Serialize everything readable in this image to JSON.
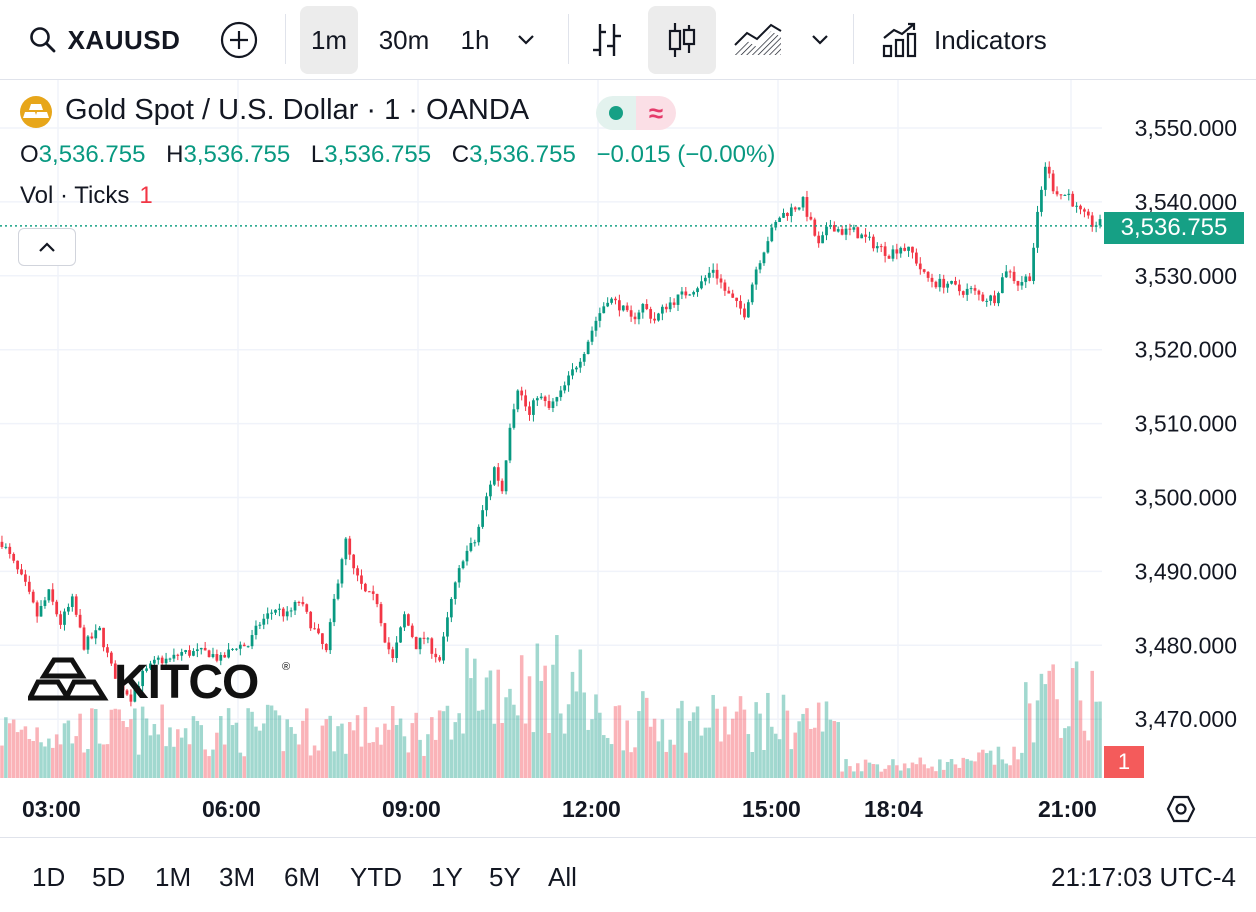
{
  "toolbar": {
    "symbol": "XAUUSD",
    "intervals": [
      "1m",
      "30m",
      "1h"
    ],
    "active_interval": "1m",
    "indicators_label": "Indicators"
  },
  "legend": {
    "title": "Gold Spot / U.S. Dollar · 1 · OANDA",
    "ohlc": {
      "o_label": "O",
      "o": "3,536.755",
      "h_label": "H",
      "h": "3,536.755",
      "l_label": "L",
      "l": "3,536.755",
      "c_label": "C",
      "c": "3,536.755",
      "change": "−0.015 (−0.00%)"
    },
    "volume_label": "Vol · Ticks",
    "volume_value": "1",
    "wave_glyph": "≈"
  },
  "price_scale": {
    "current_price": "3,536.755",
    "current_volume": "1"
  },
  "watermark": {
    "text": "KITCO",
    "mark": "®"
  },
  "colors": {
    "up": "#089981",
    "down": "#f23645",
    "badge": "#16a085",
    "gold_icon": "#e7a61a"
  },
  "icons": [
    "search-icon",
    "add-symbol-icon",
    "chevron-down-icon",
    "bar-chart-icon",
    "candlestick-icon",
    "area-chart-icon",
    "indicators-icon",
    "gold-bars-icon",
    "collapse-chevron-icon",
    "settings-hex-icon"
  ],
  "range_buttons": [
    "1D",
    "5D",
    "1M",
    "3M",
    "6M",
    "YTD",
    "1Y",
    "5Y",
    "All"
  ],
  "clock": "21:17:03 UTC-4",
  "chart_data": {
    "type": "candlestick",
    "y_ticks": [
      "3,550.000",
      "3,540.000",
      "3,530.000",
      "3,520.000",
      "3,510.000",
      "3,500.000",
      "3,490.000",
      "3,480.000",
      "3,470.000"
    ],
    "y_tick_values": [
      3550,
      3540,
      3530,
      3520,
      3510,
      3500,
      3490,
      3480,
      3470
    ],
    "x_ticks": [
      "03:00",
      "06:00",
      "09:00",
      "12:00",
      "15:00",
      "18:04",
      "21:00"
    ],
    "ylim": [
      3462,
      3556
    ],
    "last_price": 3536.755,
    "price_path": [
      [
        0,
        3494
      ],
      [
        3,
        3491
      ],
      [
        6,
        3488
      ],
      [
        9,
        3484
      ],
      [
        12,
        3487
      ],
      [
        15,
        3483
      ],
      [
        18,
        3486
      ],
      [
        21,
        3480
      ],
      [
        25,
        3482
      ],
      [
        28,
        3477
      ],
      [
        30,
        3475
      ],
      [
        33,
        3473
      ],
      [
        36,
        3476
      ],
      [
        40,
        3478
      ],
      [
        43,
        3478
      ],
      [
        46,
        3479
      ],
      [
        50,
        3479
      ],
      [
        53,
        3479
      ],
      [
        56,
        3478
      ],
      [
        60,
        3480
      ],
      [
        63,
        3480
      ],
      [
        66,
        3483
      ],
      [
        70,
        3485
      ],
      [
        73,
        3484
      ],
      [
        76,
        3486
      ],
      [
        80,
        3482
      ],
      [
        83,
        3479
      ],
      [
        85,
        3486
      ],
      [
        87,
        3492
      ],
      [
        88,
        3494
      ],
      [
        90,
        3490
      ],
      [
        93,
        3487
      ],
      [
        96,
        3486
      ],
      [
        98,
        3481
      ],
      [
        100,
        3478
      ],
      [
        103,
        3484
      ],
      [
        106,
        3480
      ],
      [
        108,
        3481
      ],
      [
        112,
        3478
      ],
      [
        115,
        3486
      ],
      [
        118,
        3492
      ],
      [
        121,
        3494
      ],
      [
        123,
        3498
      ],
      [
        126,
        3504
      ],
      [
        128,
        3501
      ],
      [
        130,
        3510
      ],
      [
        132,
        3515
      ],
      [
        135,
        3511
      ],
      [
        137,
        3514
      ],
      [
        140,
        3512
      ],
      [
        143,
        3514
      ],
      [
        146,
        3517
      ],
      [
        149,
        3520
      ],
      [
        152,
        3524
      ],
      [
        155,
        3527
      ],
      [
        158,
        3526
      ],
      [
        161,
        3524
      ],
      [
        164,
        3526
      ],
      [
        167,
        3524
      ],
      [
        170,
        3526
      ],
      [
        173,
        3527
      ],
      [
        176,
        3528
      ],
      [
        179,
        3529
      ],
      [
        182,
        3531
      ],
      [
        185,
        3528
      ],
      [
        188,
        3526
      ],
      [
        190,
        3525
      ],
      [
        193,
        3531
      ],
      [
        196,
        3535
      ],
      [
        199,
        3538
      ],
      [
        202,
        3539
      ],
      [
        205,
        3540
      ],
      [
        207,
        3537
      ],
      [
        209,
        3534
      ],
      [
        212,
        3537
      ],
      [
        215,
        3536
      ],
      [
        218,
        3536
      ],
      [
        221,
        3535
      ],
      [
        224,
        3534
      ],
      [
        227,
        3533
      ],
      [
        230,
        3534
      ],
      [
        233,
        3533
      ],
      [
        236,
        3530
      ],
      [
        239,
        3529
      ],
      [
        242,
        3529
      ],
      [
        245,
        3528
      ],
      [
        248,
        3528
      ],
      [
        251,
        3527
      ],
      [
        254,
        3527
      ],
      [
        257,
        3531
      ],
      [
        260,
        3529
      ],
      [
        263,
        3530
      ],
      [
        265,
        3538
      ],
      [
        267,
        3545
      ],
      [
        269,
        3542
      ],
      [
        271,
        3541
      ],
      [
        273,
        3541
      ],
      [
        275,
        3539
      ],
      [
        277,
        3538
      ],
      [
        279,
        3537
      ],
      [
        281,
        3537
      ]
    ]
  }
}
